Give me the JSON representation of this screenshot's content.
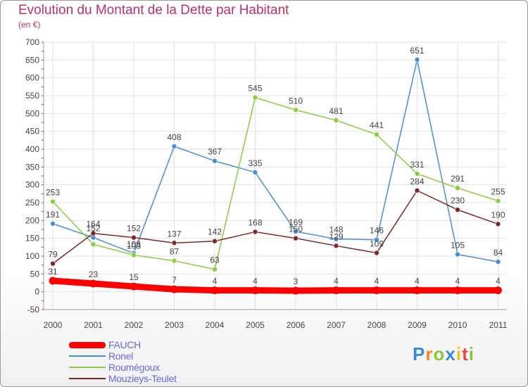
{
  "header": {
    "title": "Evolution du Montant de la Dette par Habitant",
    "subtitle": "(en €)"
  },
  "logo": {
    "text": "Proxiti",
    "letters": [
      {
        "ch": "P",
        "color": "#3a8ad6"
      },
      {
        "ch": "r",
        "color": "#f08a20"
      },
      {
        "ch": "o",
        "color": "#8ac63a"
      },
      {
        "ch": "x",
        "color": "#3a8ad6"
      },
      {
        "ch": "i",
        "color": "#f0c020"
      },
      {
        "ch": "t",
        "color": "#e04848"
      },
      {
        "ch": "i",
        "color": "#8ac63a"
      }
    ]
  },
  "chart_data": {
    "type": "line",
    "title": "Evolution du Montant de la Dette par Habitant",
    "subtitle": "(en €)",
    "x": [
      "2000",
      "2001",
      "2002",
      "2003",
      "2004",
      "2005",
      "2006",
      "2007",
      "2008",
      "2009",
      "2010",
      "2011"
    ],
    "ylim": [
      -50,
      700
    ],
    "yticks": [
      -50,
      0,
      50,
      100,
      150,
      200,
      250,
      300,
      350,
      400,
      450,
      500,
      550,
      600,
      650,
      700
    ],
    "grid": true,
    "legend_position": "bottom-left",
    "series": [
      {
        "name": "FAUCH",
        "color": "#ff0000",
        "values": [
          31,
          23,
          15,
          7,
          4,
          4,
          3,
          4,
          4,
          4,
          4,
          4
        ],
        "labels": [
          "31",
          "23",
          "15",
          "7",
          "4",
          "4",
          "3",
          "4",
          "4",
          "4",
          "4",
          "4"
        ]
      },
      {
        "name": "Ronel",
        "color": "#4a90d0",
        "values": [
          191,
          152,
          108,
          408,
          367,
          335,
          169,
          148,
          146,
          651,
          105,
          84
        ],
        "labels": [
          "191",
          "152",
          "108",
          "408",
          "367",
          "335",
          "169",
          "148",
          "146",
          "651",
          "105",
          "84"
        ]
      },
      {
        "name": "Roumégoux",
        "color": "#8ccc40",
        "values": [
          253,
          133,
          103,
          87,
          63,
          545,
          510,
          481,
          441,
          331,
          291,
          255
        ],
        "labels": [
          "253",
          "",
          "103",
          "87",
          "63",
          "545",
          "510",
          "481",
          "441",
          "331",
          "291",
          "255"
        ]
      },
      {
        "name": "Mouzieys-Teulet",
        "color": "#7a2a2a",
        "values": [
          79,
          164,
          152,
          137,
          142,
          168,
          150,
          129,
          109,
          284,
          230,
          190
        ],
        "labels": [
          "79",
          "164",
          "152",
          "137",
          "142",
          "168",
          "150",
          "129",
          "109",
          "284",
          "230",
          "190"
        ]
      }
    ]
  }
}
